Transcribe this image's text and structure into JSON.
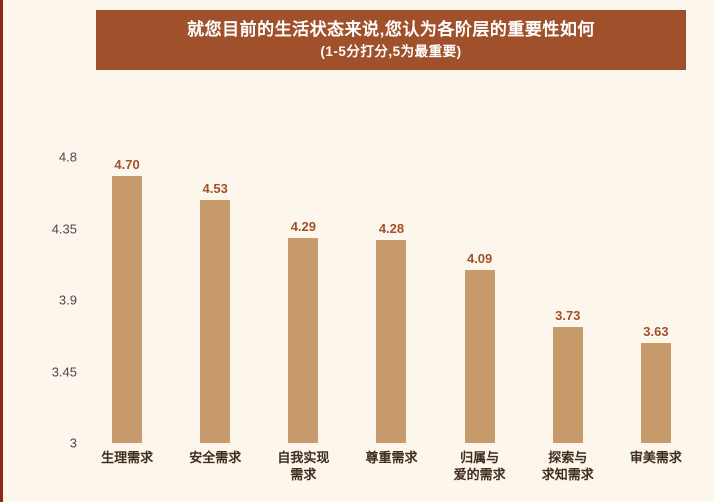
{
  "page": {
    "background_color": "#fdf6ed",
    "left_edge_color": "#8a2a18"
  },
  "header": {
    "title": "就您目前的生活状态来说,您认为各阶层的重要性如何",
    "subtitle": "(1-5分打分,5为最重要)",
    "background_color": "#a0512b",
    "text_color": "#ffffff"
  },
  "chart_data": {
    "type": "bar",
    "title": "就您目前的生活状态来说,您认为各阶层的重要性如何",
    "subtitle": "(1-5分打分,5为最重要)",
    "categories": [
      "生理需求",
      "安全需求",
      "自我实现需求",
      "尊重需求",
      "归属与爱的需求",
      "探索与求知需求",
      "审美需求"
    ],
    "category_lines": [
      [
        "生理需求"
      ],
      [
        "安全需求"
      ],
      [
        "自我实现",
        "需求"
      ],
      [
        "尊重需求"
      ],
      [
        "归属与",
        "爱的需求"
      ],
      [
        "探索与",
        "求知需求"
      ],
      [
        "审美需求"
      ]
    ],
    "values": [
      4.7,
      4.53,
      4.29,
      4.28,
      4.09,
      3.73,
      3.63
    ],
    "value_labels": [
      "4.70",
      "4.53",
      "4.29",
      "4.28",
      "4.09",
      "3.73",
      "3.63"
    ],
    "ylim": [
      3,
      4.8
    ],
    "yticks": [
      {
        "label": "4.8",
        "value": 4.8
      },
      {
        "label": "4.35",
        "value": 4.35
      },
      {
        "label": "3.9",
        "value": 3.9
      },
      {
        "label": "3.45",
        "value": 3.45
      },
      {
        "label": "3",
        "value": 3
      }
    ],
    "bar_color": "#c79b6c",
    "value_label_color": "#a0522d",
    "category_label_color": "#3f2e1e",
    "axis_label_color": "#4a4a4a",
    "grid": false,
    "legend": "none"
  }
}
